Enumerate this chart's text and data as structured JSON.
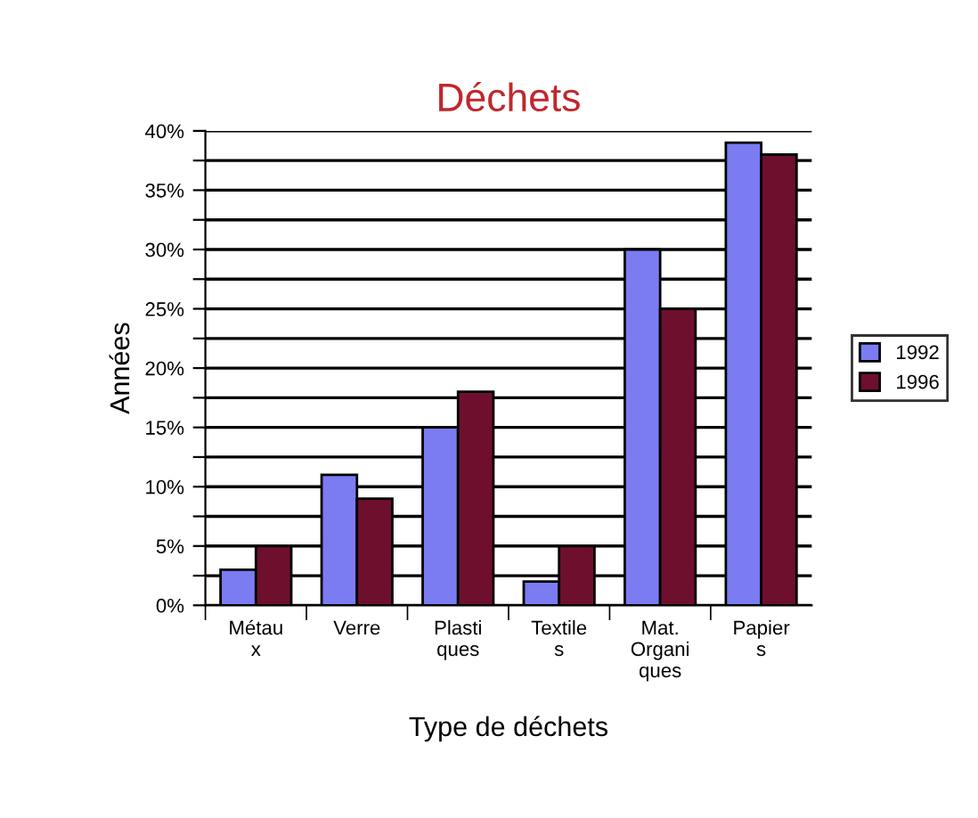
{
  "chart_data": {
    "type": "bar",
    "title": "Déchets",
    "xlabel": "Type de déchets",
    "ylabel": "Années",
    "categories": [
      "Métau\nx",
      "Verre",
      "Plasti\nques",
      "Textile\ns",
      "Mat.\nOrgani\nques",
      "Papier\ns"
    ],
    "series": [
      {
        "name": "1992",
        "color": "#7b7cf2",
        "values": [
          3,
          11,
          15,
          2,
          30,
          39
        ]
      },
      {
        "name": "1996",
        "color": "#6e0f2e",
        "values": [
          5,
          9,
          18,
          5,
          25,
          38
        ]
      }
    ],
    "ylim": [
      0,
      40
    ],
    "yticks": [
      {
        "value": 0,
        "label": "0%"
      },
      {
        "value": 2.5,
        "label": null
      },
      {
        "value": 5,
        "label": "5%"
      },
      {
        "value": 7.5,
        "label": null
      },
      {
        "value": 10,
        "label": "10%"
      },
      {
        "value": 12.5,
        "label": null
      },
      {
        "value": 15,
        "label": "15%"
      },
      {
        "value": 17.5,
        "label": null
      },
      {
        "value": 20,
        "label": "20%"
      },
      {
        "value": 22.5,
        "label": null
      },
      {
        "value": 25,
        "label": "25%"
      },
      {
        "value": 27.5,
        "label": null
      },
      {
        "value": 30,
        "label": "30%"
      },
      {
        "value": 32.5,
        "label": null
      },
      {
        "value": 35,
        "label": "35%"
      },
      {
        "value": 37.5,
        "label": null
      },
      {
        "value": 40,
        "label": "40%"
      }
    ],
    "grid": "y",
    "legend": "right"
  }
}
